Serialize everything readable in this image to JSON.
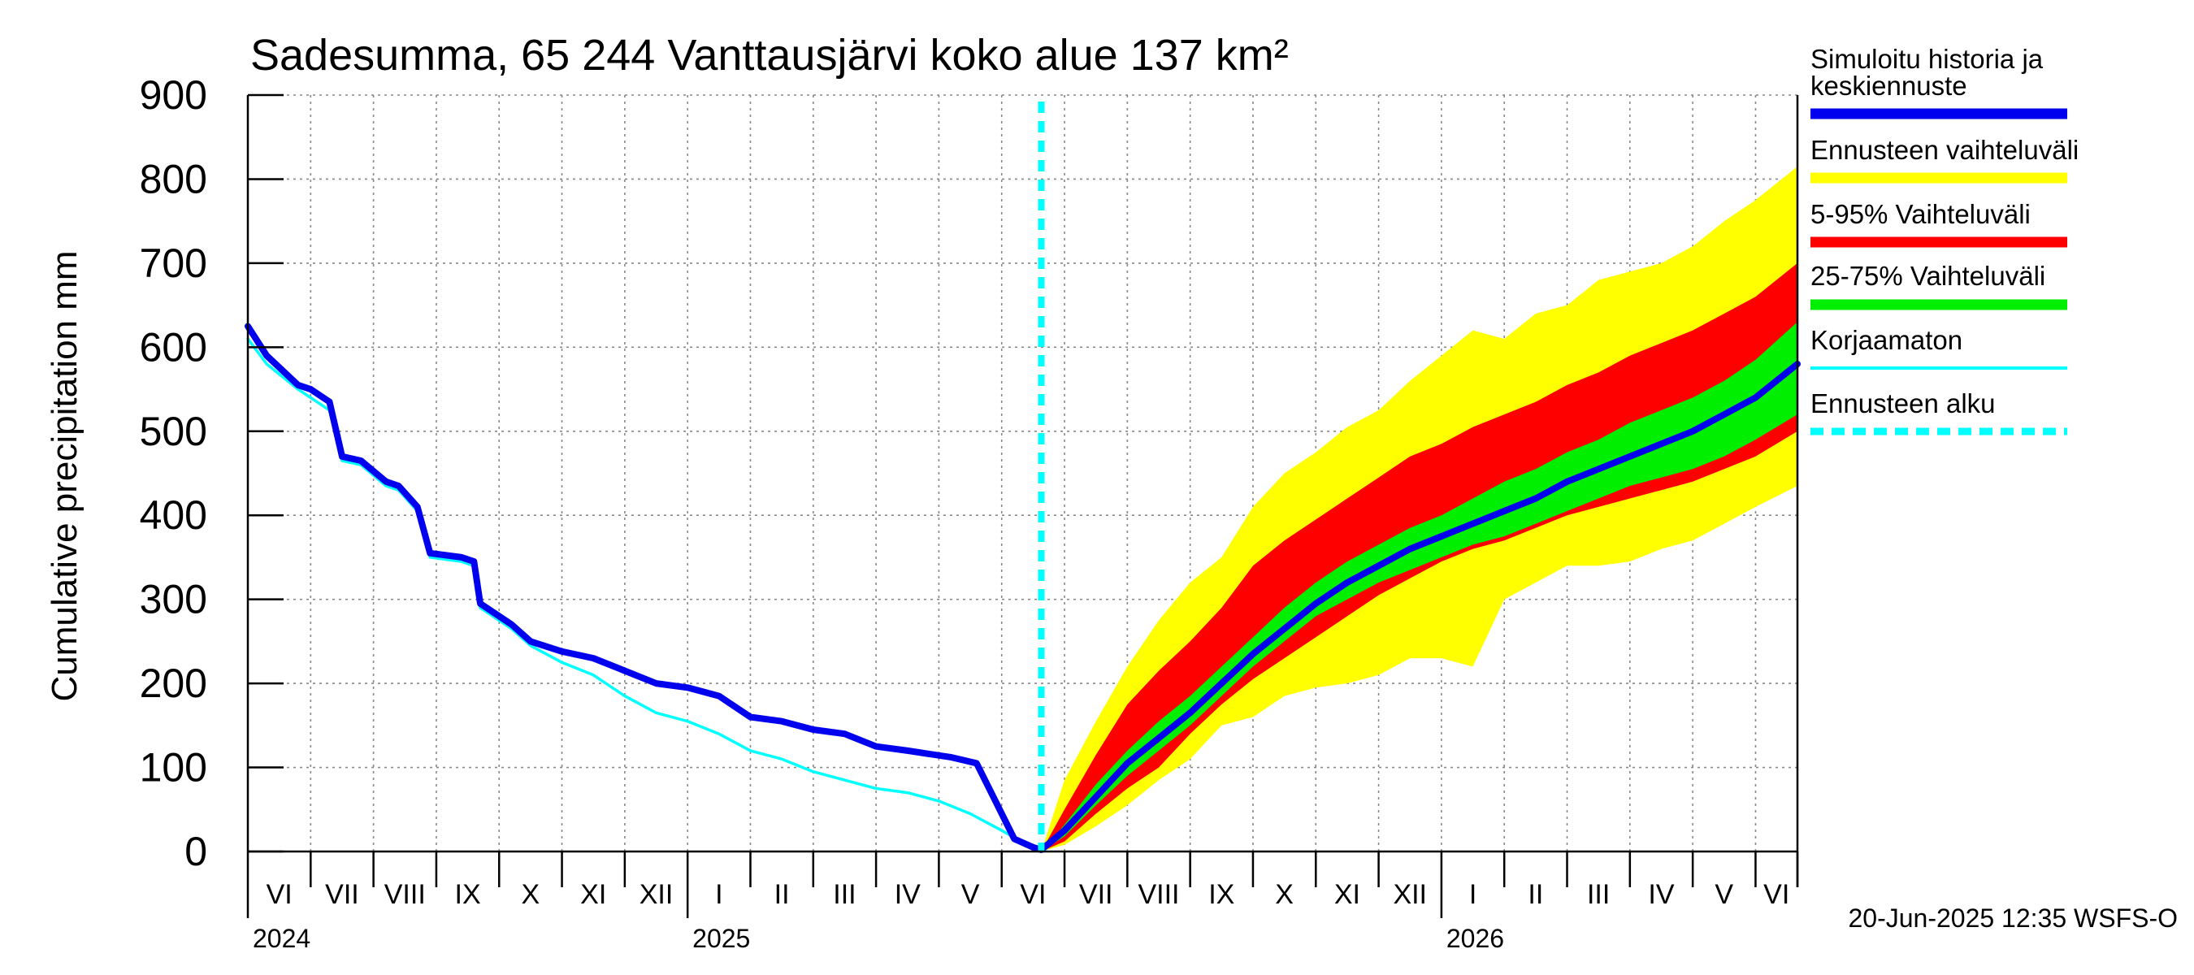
{
  "chart_data": {
    "type": "area",
    "title": "Sadesumma, 65 244 Vanttausjärvi koko alue 137 km²",
    "ylabel": "Cumulative precipitation   mm",
    "ylim": [
      0,
      900
    ],
    "yticks": [
      0,
      100,
      200,
      300,
      400,
      500,
      600,
      700,
      800,
      900
    ],
    "x_unit": "months since start of June 2024",
    "xlim": [
      0,
      24.667
    ],
    "forecast_start": 12.63,
    "months": [
      "VI",
      "VII",
      "VIII",
      "IX",
      "X",
      "XI",
      "XII",
      "I",
      "II",
      "III",
      "IV",
      "V",
      "VI",
      "VII",
      "VIII",
      "IX",
      "X",
      "XI",
      "XII",
      "I",
      "II",
      "III",
      "IV",
      "V",
      "VI"
    ],
    "years": [
      {
        "label": "2024",
        "month_index": 0
      },
      {
        "label": "2025",
        "month_index": 7
      },
      {
        "label": "2026",
        "month_index": 19
      }
    ],
    "timestamp": "20-Jun-2025 12:35 WSFS-O",
    "series": [
      {
        "name": "Simuloitu historia ja keskiennuste",
        "color": "#0000ee",
        "x": [
          0,
          0.3,
          0.8,
          1.0,
          1.3,
          1.5,
          1.8,
          2.2,
          2.4,
          2.7,
          2.9,
          3.4,
          3.6,
          3.7,
          4.2,
          4.5,
          5.0,
          5.5,
          6.0,
          6.5,
          7.0,
          7.5,
          8.0,
          8.5,
          9.0,
          9.5,
          10.0,
          10.5,
          11.2,
          11.6,
          11.9,
          12.2,
          12.5,
          12.63,
          13.0,
          13.5,
          14.0,
          14.5,
          15.0,
          15.5,
          16.0,
          16.5,
          17.0,
          17.5,
          18.0,
          18.5,
          19.0,
          19.5,
          20.0,
          20.5,
          21.0,
          21.5,
          22.0,
          22.5,
          23.0,
          23.5,
          24.0,
          24.667
        ],
        "y": [
          625,
          590,
          555,
          550,
          535,
          470,
          465,
          440,
          435,
          410,
          355,
          350,
          345,
          295,
          270,
          250,
          238,
          230,
          215,
          200,
          195,
          185,
          160,
          155,
          145,
          140,
          125,
          120,
          112,
          105,
          60,
          15,
          5,
          2,
          25,
          65,
          105,
          135,
          165,
          200,
          235,
          265,
          295,
          320,
          340,
          360,
          375,
          390,
          405,
          420,
          440,
          455,
          470,
          485,
          500,
          520,
          540,
          580
        ]
      },
      {
        "name": "Korjaamaton",
        "color": "#00ffff",
        "x": [
          0,
          0.3,
          0.8,
          1.0,
          1.3,
          1.5,
          1.8,
          2.2,
          2.4,
          2.7,
          2.9,
          3.4,
          3.6,
          3.7,
          4.2,
          4.5,
          5.0,
          5.5,
          6.0,
          6.5,
          7.0,
          7.5,
          8.0,
          8.5,
          9.0,
          9.5,
          10.0,
          10.5,
          11.0,
          11.5,
          12.0,
          12.4,
          12.63
        ],
        "y": [
          610,
          580,
          550,
          540,
          525,
          465,
          460,
          435,
          430,
          405,
          350,
          345,
          340,
          290,
          265,
          245,
          225,
          210,
          185,
          165,
          155,
          140,
          120,
          110,
          95,
          85,
          75,
          70,
          60,
          45,
          25,
          8,
          2
        ]
      }
    ],
    "bands": [
      {
        "name": "Ennusteen vaihteluväli",
        "color": "#ffff00",
        "x": [
          12.63,
          13.0,
          13.5,
          14.0,
          14.5,
          15.0,
          15.5,
          16.0,
          16.5,
          17.0,
          17.5,
          18.0,
          18.5,
          19.0,
          19.5,
          20.0,
          20.5,
          21.0,
          21.5,
          22.0,
          22.5,
          23.0,
          23.5,
          24.0,
          24.667
        ],
        "lower": [
          0,
          8,
          30,
          55,
          85,
          110,
          150,
          160,
          185,
          195,
          200,
          210,
          230,
          230,
          220,
          300,
          320,
          340,
          340,
          345,
          360,
          370,
          390,
          410,
          435
        ],
        "upper": [
          0,
          85,
          155,
          220,
          275,
          320,
          350,
          410,
          450,
          475,
          505,
          525,
          560,
          590,
          620,
          610,
          640,
          650,
          680,
          690,
          700,
          720,
          750,
          775,
          815
        ]
      },
      {
        "name": "5-95% Vaihteluväli",
        "color": "#ff0000",
        "x": [
          12.63,
          13.0,
          13.5,
          14.0,
          14.5,
          15.0,
          15.5,
          16.0,
          16.5,
          17.0,
          17.5,
          18.0,
          18.5,
          19.0,
          19.5,
          20.0,
          20.5,
          21.0,
          21.5,
          22.0,
          22.5,
          23.0,
          23.5,
          24.0,
          24.667
        ],
        "lower": [
          0,
          12,
          45,
          75,
          100,
          140,
          175,
          205,
          230,
          255,
          280,
          305,
          325,
          345,
          360,
          370,
          385,
          400,
          410,
          420,
          430,
          440,
          455,
          470,
          500
        ],
        "upper": [
          0,
          50,
          115,
          175,
          215,
          250,
          290,
          340,
          370,
          395,
          420,
          445,
          470,
          485,
          505,
          520,
          535,
          555,
          570,
          590,
          605,
          620,
          640,
          660,
          700
        ]
      },
      {
        "name": "25-75% Vaihteluväli",
        "color": "#00ee00",
        "x": [
          12.63,
          13.0,
          13.5,
          14.0,
          14.5,
          15.0,
          15.5,
          16.0,
          16.5,
          17.0,
          17.5,
          18.0,
          18.5,
          19.0,
          19.5,
          20.0,
          20.5,
          21.0,
          21.5,
          22.0,
          22.5,
          23.0,
          23.5,
          24.0,
          24.667
        ],
        "lower": [
          0,
          18,
          55,
          90,
          120,
          150,
          185,
          220,
          250,
          280,
          300,
          320,
          335,
          350,
          365,
          375,
          390,
          405,
          420,
          435,
          445,
          455,
          470,
          490,
          520
        ],
        "upper": [
          0,
          32,
          80,
          120,
          155,
          185,
          220,
          255,
          290,
          320,
          345,
          365,
          385,
          400,
          420,
          440,
          455,
          475,
          490,
          510,
          525,
          540,
          560,
          585,
          630
        ]
      }
    ],
    "legend": [
      {
        "label": "Simuloitu historia ja keskiennuste",
        "color": "#0000ee",
        "style": "line"
      },
      {
        "label": "Ennusteen vaihteluväli",
        "color": "#ffff00",
        "style": "line"
      },
      {
        "label": "5-95% Vaihteluväli",
        "color": "#ff0000",
        "style": "line"
      },
      {
        "label": "25-75% Vaihteluväli",
        "color": "#00ee00",
        "style": "line"
      },
      {
        "label": "Korjaamaton",
        "color": "#00ffff",
        "style": "thin"
      },
      {
        "label": "Ennusteen alku",
        "color": "#00ffff",
        "style": "dashed"
      }
    ]
  }
}
